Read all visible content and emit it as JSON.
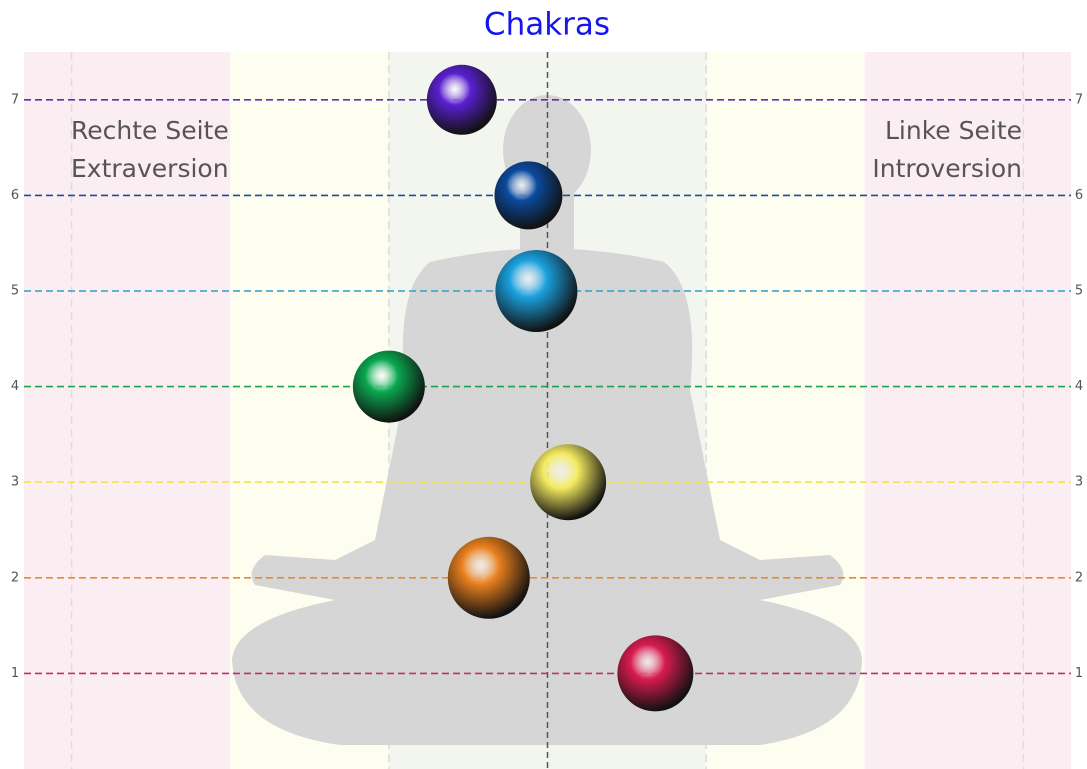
{
  "chart_data": {
    "type": "bubble",
    "title": "Chakras",
    "x": [
      -0.54,
      -0.12,
      -0.07,
      -1.0,
      0.13,
      -0.37,
      0.68
    ],
    "values": [
      7,
      6,
      5,
      4,
      3,
      2,
      1
    ],
    "sizes": [
      35,
      34,
      41,
      36,
      38,
      41,
      38
    ],
    "colors": [
      "#5a1fd0",
      "#0a4a9e",
      "#1aa0de",
      "#0aa850",
      "#f4ea60",
      "#e8801e",
      "#d81b50"
    ],
    "line_colors": [
      "#6a2ab0",
      "#1a4f9a",
      "#2aa0d0",
      "#20a050",
      "#f0e060",
      "#e88a30",
      "#c0306a"
    ],
    "xlim": [
      -3.3,
      3.3
    ],
    "ylim": [
      0,
      7.5
    ],
    "yticks": [
      1,
      2,
      3,
      4,
      5,
      6,
      7
    ],
    "xgrid": [
      -3,
      -1,
      1,
      3
    ],
    "zeroline": true,
    "bands": [
      {
        "x0": -3.3,
        "x1": -2,
        "color": "#fbeef3"
      },
      {
        "x0": -2,
        "x1": -1,
        "color": "#fdfdf0"
      },
      {
        "x0": -1,
        "x1": 1,
        "color": "#f3f6ef"
      },
      {
        "x0": 1,
        "x1": 2,
        "color": "#fdfdf0"
      },
      {
        "x0": 2,
        "x1": 3.3,
        "color": "#fbeef3"
      }
    ],
    "annotations": [
      [
        "Rechte Seite",
        "Extraversion"
      ],
      [
        "Linke Seite",
        "Introversion"
      ]
    ]
  }
}
